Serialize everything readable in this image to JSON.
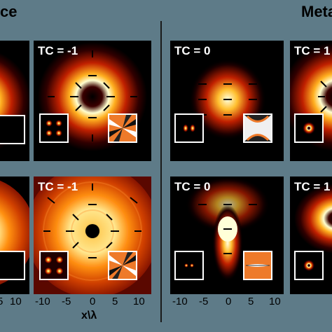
{
  "headers": {
    "left": "ce",
    "right": "Meta"
  },
  "panels": {
    "top_row": [
      {
        "id": "tl1",
        "tc": ""
      },
      {
        "id": "tl2",
        "tc": "TC = -1"
      },
      {
        "id": "tr1",
        "tc": "TC = 0"
      },
      {
        "id": "tr2",
        "tc": "TC = 1"
      }
    ],
    "bottom_row": [
      {
        "id": "bl1",
        "tc": ""
      },
      {
        "id": "bl2",
        "tc": "TC = -1"
      },
      {
        "id": "br1",
        "tc": "TC = 0"
      },
      {
        "id": "br2",
        "tc": "TC = 1"
      }
    ]
  },
  "axis": {
    "left_partial_ticks": [
      "5",
      "10"
    ],
    "left_ticks": [
      "-10",
      "-5",
      "0",
      "5",
      "10"
    ],
    "right_ticks": [
      "-10",
      "-5",
      "0",
      "5",
      "10"
    ],
    "xlabel": "x\\λ"
  },
  "colors": {
    "background": "#5e7b88",
    "panel": "#000000",
    "glow_core": "#ffffc8",
    "glow_mid": "#ff8800",
    "glow_edge": "#9a1000"
  }
}
